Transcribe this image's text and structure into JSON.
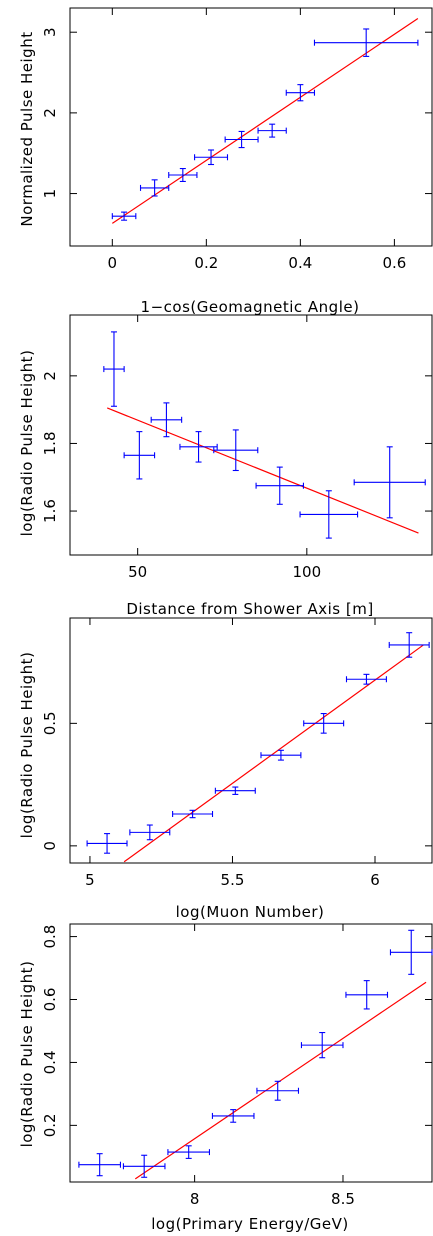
{
  "chart_data": [
    {
      "type": "scatter",
      "xlabel": "1−cos(Geomagnetic Angle)",
      "ylabel": "Normalized Pulse Height",
      "xlim": [
        -0.09,
        0.68
      ],
      "ylim": [
        0.35,
        3.3
      ],
      "xticks": [
        0,
        0.2,
        0.4,
        0.6
      ],
      "xtick_labels": [
        "0",
        "0.2",
        "0.4",
        "0.6"
      ],
      "yticks": [
        1,
        2,
        3
      ],
      "ytick_labels": [
        "1",
        "2",
        "3"
      ],
      "points": [
        {
          "x": 0.025,
          "xerr": 0.025,
          "y": 0.72,
          "yerr": 0.05
        },
        {
          "x": 0.09,
          "xerr": 0.03,
          "y": 1.07,
          "yerr": 0.1
        },
        {
          "x": 0.15,
          "xerr": 0.03,
          "y": 1.23,
          "yerr": 0.08
        },
        {
          "x": 0.21,
          "xerr": 0.035,
          "y": 1.45,
          "yerr": 0.09
        },
        {
          "x": 0.275,
          "xerr": 0.035,
          "y": 1.67,
          "yerr": 0.1
        },
        {
          "x": 0.34,
          "xerr": 0.03,
          "y": 1.78,
          "yerr": 0.08
        },
        {
          "x": 0.4,
          "xerr": 0.03,
          "y": 2.25,
          "yerr": 0.1
        },
        {
          "x": 0.54,
          "xerr": 0.11,
          "y": 2.87,
          "yerr": 0.17
        }
      ],
      "fit": {
        "x": [
          0,
          0.65
        ],
        "y": [
          0.63,
          3.17
        ]
      }
    },
    {
      "type": "scatter",
      "xlabel": "Distance from Shower Axis [m]",
      "ylabel": "log(Radio Pulse Height)",
      "xlim": [
        30,
        137
      ],
      "ylim": [
        1.47,
        2.18
      ],
      "xticks": [
        50,
        100
      ],
      "xtick_labels": [
        "50",
        "100"
      ],
      "yticks": [
        1.6,
        1.8,
        2
      ],
      "ytick_labels": [
        "1.6",
        "1.8",
        "2"
      ],
      "points": [
        {
          "x": 43,
          "xerr": 3,
          "y": 2.02,
          "yerr": 0.11
        },
        {
          "x": 50.5,
          "xerr": 4.5,
          "y": 1.765,
          "yerr": 0.07
        },
        {
          "x": 58.5,
          "xerr": 4.5,
          "y": 1.87,
          "yerr": 0.05
        },
        {
          "x": 68,
          "xerr": 5.5,
          "y": 1.79,
          "yerr": 0.045
        },
        {
          "x": 79,
          "xerr": 6.5,
          "y": 1.78,
          "yerr": 0.06
        },
        {
          "x": 92,
          "xerr": 7,
          "y": 1.675,
          "yerr": 0.055
        },
        {
          "x": 106.5,
          "xerr": 8.5,
          "y": 1.59,
          "yerr": 0.07
        },
        {
          "x": 124.5,
          "xerr": 10.5,
          "y": 1.685,
          "yerr": 0.105
        }
      ],
      "fit": {
        "x": [
          41,
          133
        ],
        "y": [
          1.905,
          1.535
        ]
      }
    },
    {
      "type": "scatter",
      "xlabel": "log(Muon Number)",
      "ylabel": "log(Radio Pulse Height)",
      "xlim": [
        4.93,
        6.2
      ],
      "ylim": [
        -0.07,
        0.93
      ],
      "xticks": [
        5,
        5.5,
        6
      ],
      "xtick_labels": [
        "5",
        "5.5",
        "6"
      ],
      "yticks": [
        0,
        0.5
      ],
      "ytick_labels": [
        "0",
        "0.5"
      ],
      "points": [
        {
          "x": 5.06,
          "xerr": 0.07,
          "y": 0.01,
          "yerr": 0.04
        },
        {
          "x": 5.21,
          "xerr": 0.07,
          "y": 0.055,
          "yerr": 0.03
        },
        {
          "x": 5.36,
          "xerr": 0.07,
          "y": 0.13,
          "yerr": 0.015
        },
        {
          "x": 5.51,
          "xerr": 0.07,
          "y": 0.225,
          "yerr": 0.015
        },
        {
          "x": 5.67,
          "xerr": 0.07,
          "y": 0.37,
          "yerr": 0.02
        },
        {
          "x": 5.82,
          "xerr": 0.07,
          "y": 0.5,
          "yerr": 0.04
        },
        {
          "x": 5.97,
          "xerr": 0.07,
          "y": 0.68,
          "yerr": 0.02
        },
        {
          "x": 6.12,
          "xerr": 0.07,
          "y": 0.82,
          "yerr": 0.05
        }
      ],
      "fit": {
        "x": [
          5.12,
          6.17
        ],
        "y": [
          -0.065,
          0.82
        ]
      }
    },
    {
      "type": "scatter",
      "xlabel": "log(Primary Energy/GeV)",
      "ylabel": "log(Radio Pulse Height)",
      "xlim": [
        7.58,
        8.8
      ],
      "ylim": [
        0.02,
        0.84
      ],
      "xticks": [
        8,
        8.5
      ],
      "xtick_labels": [
        "8",
        "8.5"
      ],
      "yticks": [
        0.2,
        0.4,
        0.6,
        0.8
      ],
      "ytick_labels": [
        "0.2",
        "0.4",
        "0.6",
        "0.8"
      ],
      "points": [
        {
          "x": 7.68,
          "xerr": 0.07,
          "y": 0.075,
          "yerr": 0.035
        },
        {
          "x": 7.83,
          "xerr": 0.07,
          "y": 0.07,
          "yerr": 0.035
        },
        {
          "x": 7.98,
          "xerr": 0.07,
          "y": 0.115,
          "yerr": 0.02
        },
        {
          "x": 8.13,
          "xerr": 0.07,
          "y": 0.23,
          "yerr": 0.02
        },
        {
          "x": 8.28,
          "xerr": 0.07,
          "y": 0.31,
          "yerr": 0.03
        },
        {
          "x": 8.43,
          "xerr": 0.07,
          "y": 0.455,
          "yerr": 0.04
        },
        {
          "x": 8.58,
          "xerr": 0.07,
          "y": 0.615,
          "yerr": 0.045
        },
        {
          "x": 8.73,
          "xerr": 0.07,
          "y": 0.75,
          "yerr": 0.07
        }
      ],
      "fit": {
        "x": [
          7.8,
          8.78
        ],
        "y": [
          0.03,
          0.655
        ]
      }
    }
  ],
  "colors": {
    "points": "#0000ff",
    "fit": "#ff0000",
    "axes": "#000000"
  }
}
